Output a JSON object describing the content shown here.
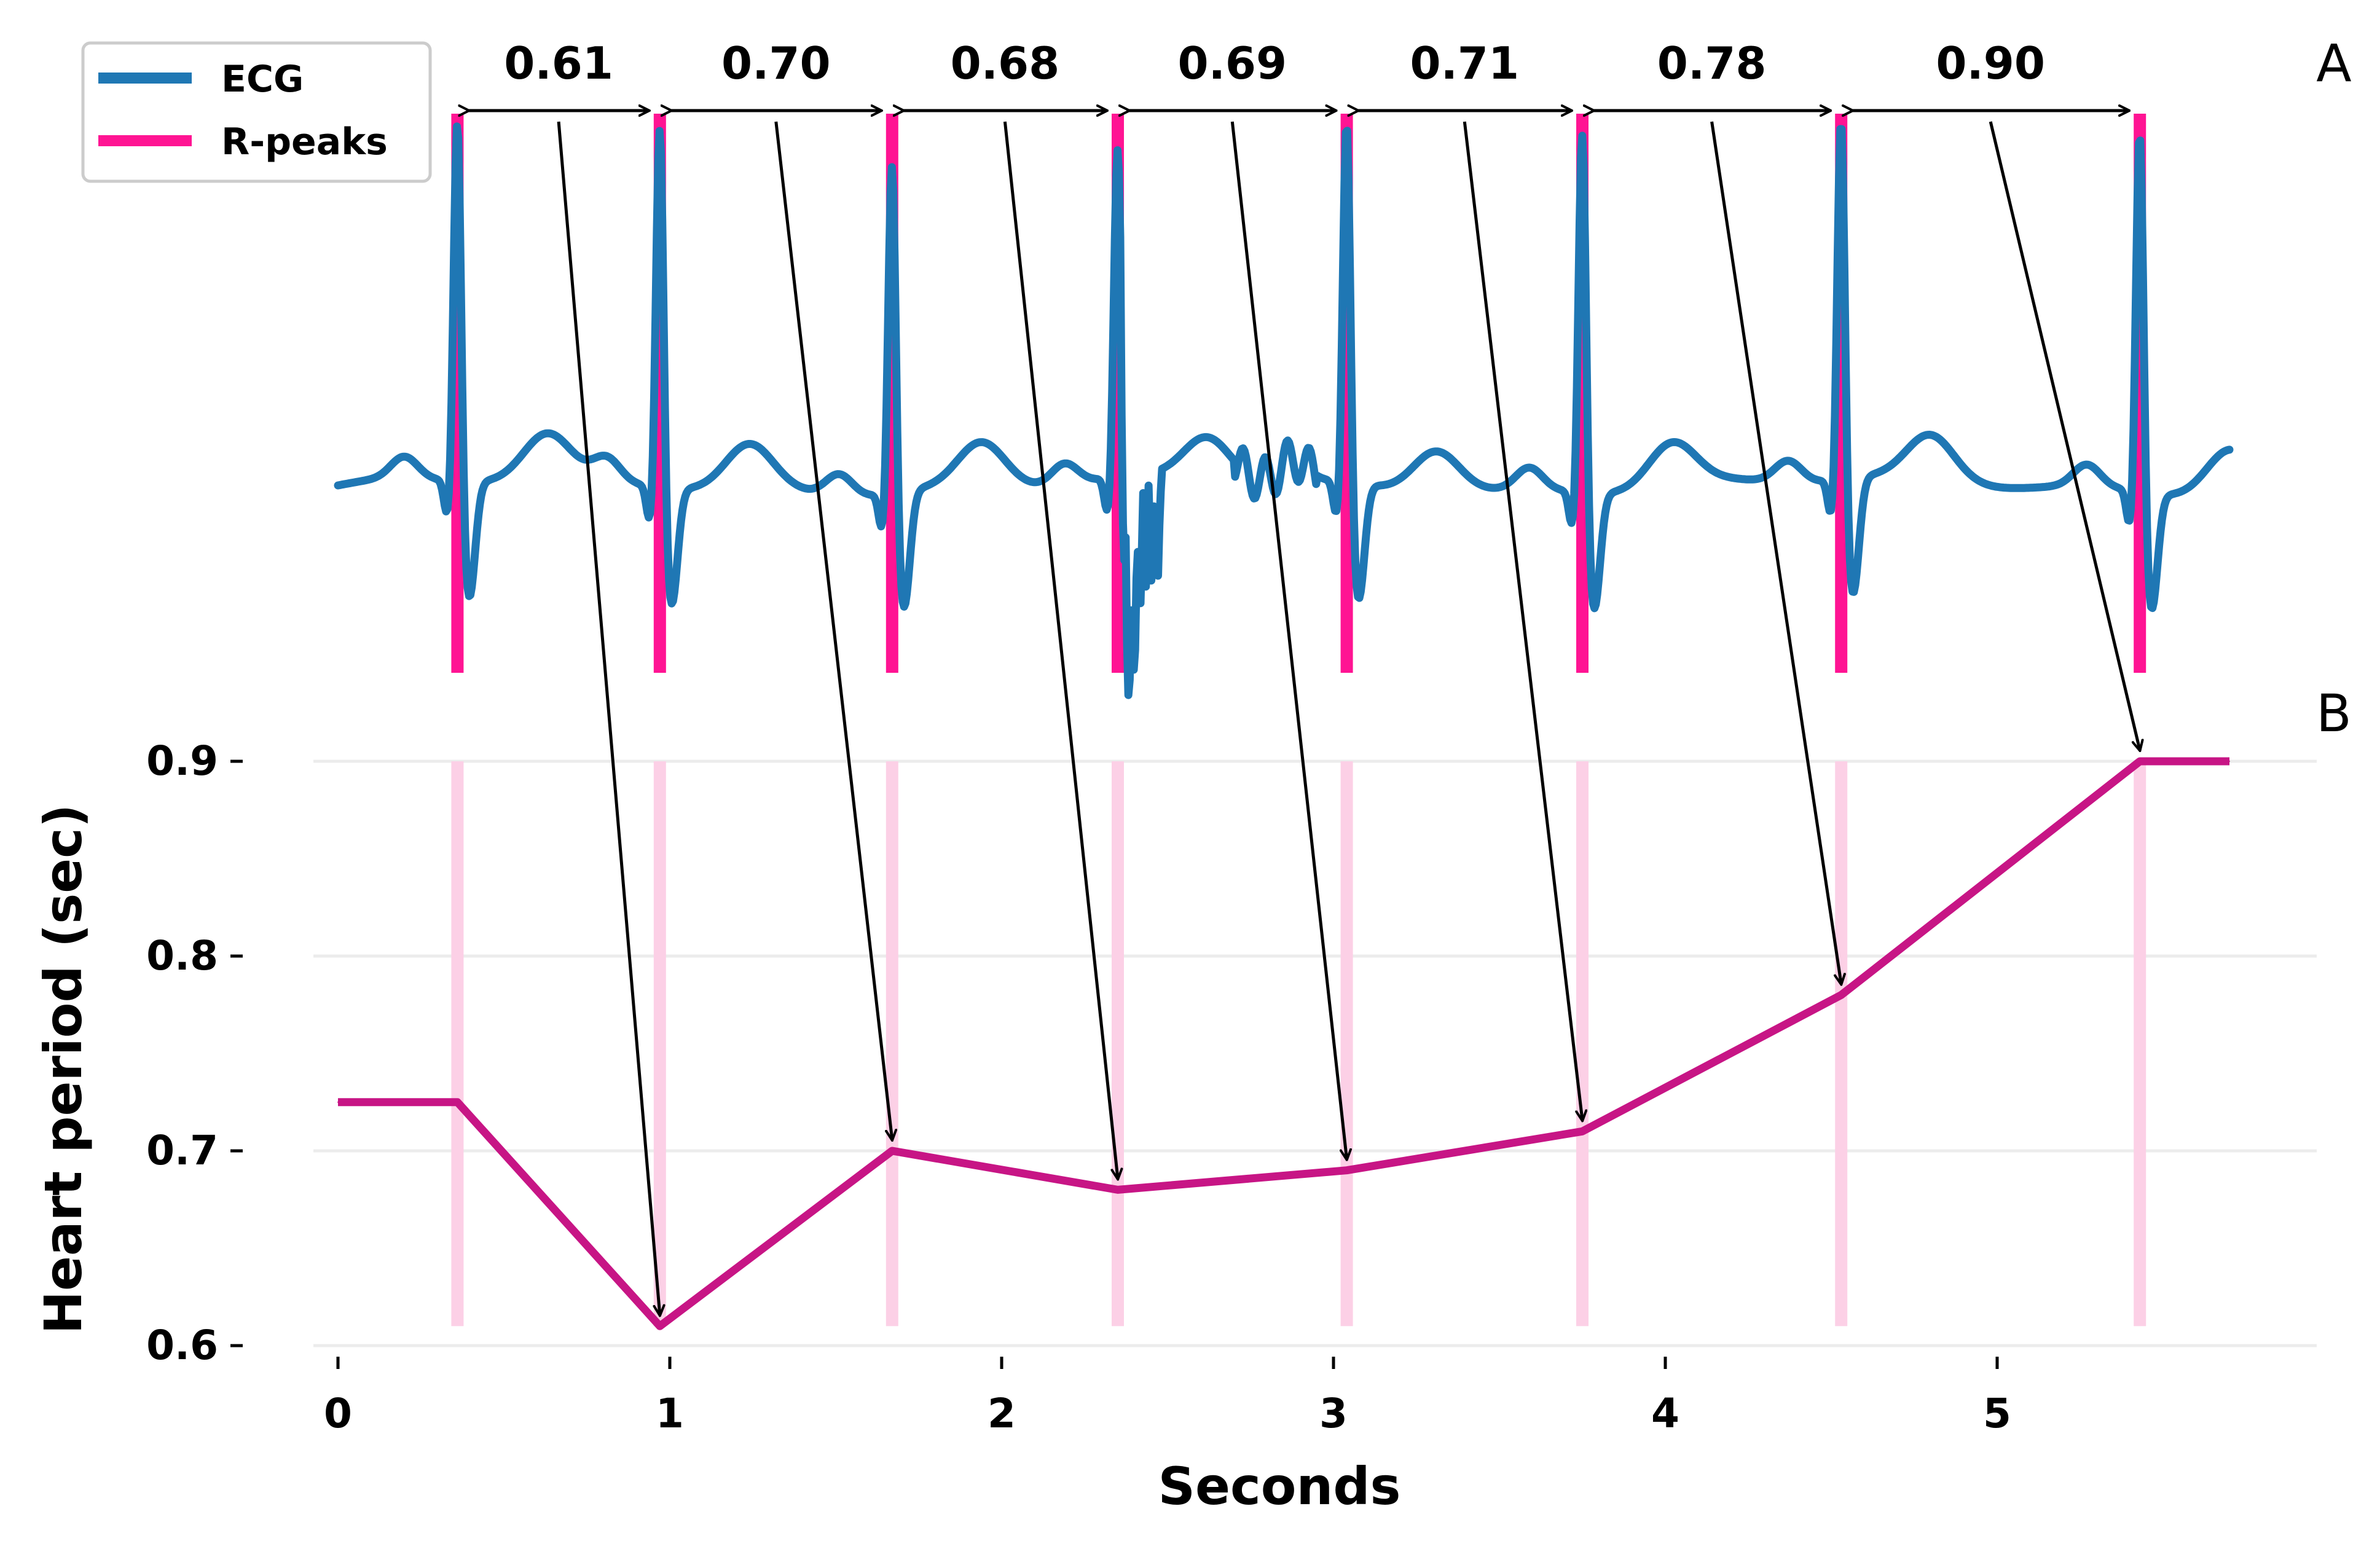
{
  "panel_labels": {
    "top": "A",
    "bottom": "B"
  },
  "legend": {
    "ecg": "ECG",
    "rpeaks": "R-peaks"
  },
  "colors": {
    "ecg": "#1f77b4",
    "rpeak": "#ff1493",
    "rpeak_band": "#fcd0e6",
    "heart_period": "#c71585",
    "grid": "#ececec",
    "arrow": "#000000"
  },
  "chart_data": [
    {
      "type": "line",
      "panel": "A",
      "legend_position": "top-left",
      "series": [
        {
          "name": "ECG"
        },
        {
          "name": "R-peaks",
          "x": [
            0.36,
            0.97,
            1.67,
            2.35,
            3.04,
            3.75,
            4.53,
            5.43
          ]
        }
      ],
      "annotations": {
        "rr_intervals": [
          "0.61",
          "0.70",
          "0.68",
          "0.69",
          "0.71",
          "0.78",
          "0.90"
        ]
      }
    },
    {
      "type": "line",
      "panel": "B",
      "xlabel": "Seconds",
      "ylabel": "Heart period (sec)",
      "xticks": [
        "0",
        "1",
        "2",
        "3",
        "4",
        "5"
      ],
      "yticks": [
        "0.6",
        "0.7",
        "0.8",
        "0.9"
      ],
      "xlim": [
        -0.08,
        5.97
      ],
      "ylim": [
        0.6,
        0.9
      ],
      "grid": true,
      "series": [
        {
          "x": [
            0,
            0.36,
            0.97,
            1.67,
            2.35,
            3.04,
            3.75,
            4.53,
            5.43,
            5.7
          ],
          "values": [
            0.725,
            0.725,
            0.61,
            0.7,
            0.68,
            0.69,
            0.71,
            0.78,
            0.9,
            0.9
          ]
        }
      ]
    }
  ]
}
